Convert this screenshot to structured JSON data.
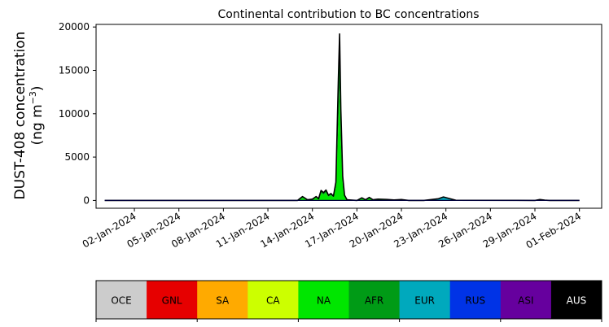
{
  "chart_data": {
    "type": "area",
    "title": "Continental contribution to BC concentrations",
    "ylabel_line1": "DUST-408 concentration",
    "ylabel_line2": "(ng m",
    "ylabel_sup": "−3",
    "ylabel_close": ")",
    "ylim": [
      -900,
      20300
    ],
    "yticks": [
      {
        "value": 0,
        "label": "0"
      },
      {
        "value": 5000,
        "label": "5000"
      },
      {
        "value": 10000,
        "label": "10000"
      },
      {
        "value": 15000,
        "label": "15000"
      },
      {
        "value": 20000,
        "label": "20000"
      }
    ],
    "xlim": [
      "2023-12-30T10:00",
      "2024-02-02T12:00"
    ],
    "xticks": [
      {
        "value": "2024-01-02",
        "label": "02-Jan-2024"
      },
      {
        "value": "2024-01-05",
        "label": "05-Jan-2024"
      },
      {
        "value": "2024-01-08",
        "label": "08-Jan-2024"
      },
      {
        "value": "2024-01-11",
        "label": "11-Jan-2024"
      },
      {
        "value": "2024-01-14",
        "label": "14-Jan-2024"
      },
      {
        "value": "2024-01-17",
        "label": "17-Jan-2024"
      },
      {
        "value": "2024-01-20",
        "label": "20-Jan-2024"
      },
      {
        "value": "2024-01-23",
        "label": "23-Jan-2024"
      },
      {
        "value": "2024-01-26",
        "label": "26-Jan-2024"
      },
      {
        "value": "2024-01-29",
        "label": "29-Jan-2024"
      },
      {
        "value": "2024-02-01",
        "label": "01-Feb-2024"
      }
    ],
    "grid": false,
    "legend": "colorbar-below",
    "regions": [
      {
        "label": "OCE",
        "color": "#cccccc"
      },
      {
        "label": "GNL",
        "color": "#e60000"
      },
      {
        "label": "SA",
        "color": "#ffaa00"
      },
      {
        "label": "CA",
        "color": "#ccff00"
      },
      {
        "label": "NA",
        "color": "#00e600"
      },
      {
        "label": "AFR",
        "color": "#009b16"
      },
      {
        "label": "EUR",
        "color": "#00a9bd"
      },
      {
        "label": "RUS",
        "color": "#0033e6"
      },
      {
        "label": "ASI",
        "color": "#66009e"
      },
      {
        "label": "AUS",
        "color": "#000000"
      }
    ],
    "series_points": [
      {
        "t": "2023-12-31T00:00",
        "NA": 0,
        "AFR": 0,
        "EUR": 0,
        "total": 0
      },
      {
        "t": "2024-01-13T00:00",
        "NA": 0,
        "AFR": 0,
        "EUR": 0,
        "total": 0
      },
      {
        "t": "2024-01-13T08:00",
        "NA": 300,
        "AFR": 100,
        "EUR": 0,
        "total": 450
      },
      {
        "t": "2024-01-13T16:00",
        "NA": 50,
        "AFR": 20,
        "EUR": 0,
        "total": 80
      },
      {
        "t": "2024-01-14T00:00",
        "NA": 100,
        "AFR": 50,
        "EUR": 0,
        "total": 150
      },
      {
        "t": "2024-01-14T06:00",
        "NA": 350,
        "AFR": 100,
        "EUR": 0,
        "total": 450
      },
      {
        "t": "2024-01-14T10:00",
        "NA": 150,
        "AFR": 50,
        "EUR": 0,
        "total": 200
      },
      {
        "t": "2024-01-14T14:00",
        "NA": 850,
        "AFR": 250,
        "EUR": 0,
        "total": 1150
      },
      {
        "t": "2024-01-14T18:00",
        "NA": 650,
        "AFR": 200,
        "EUR": 0,
        "total": 900
      },
      {
        "t": "2024-01-14T22:00",
        "NA": 900,
        "AFR": 250,
        "EUR": 0,
        "total": 1200
      },
      {
        "t": "2024-01-15T02:00",
        "NA": 400,
        "AFR": 150,
        "EUR": 0,
        "total": 600
      },
      {
        "t": "2024-01-15T06:00",
        "NA": 600,
        "AFR": 150,
        "EUR": 0,
        "total": 800
      },
      {
        "t": "2024-01-15T10:00",
        "NA": 350,
        "AFR": 100,
        "EUR": 0,
        "total": 500
      },
      {
        "t": "2024-01-15T14:00",
        "NA": 1500,
        "AFR": 400,
        "EUR": 0,
        "total": 2100
      },
      {
        "t": "2024-01-15T18:00",
        "NA": 9000,
        "AFR": 3500,
        "EUR": 0,
        "total": 14000
      },
      {
        "t": "2024-01-15T20:00",
        "NA": 13000,
        "AFR": 5000,
        "EUR": 0,
        "total": 19200
      },
      {
        "t": "2024-01-15T22:00",
        "NA": 7000,
        "AFR": 2500,
        "EUR": 0,
        "total": 10500
      },
      {
        "t": "2024-01-16T01:00",
        "NA": 2000,
        "AFR": 600,
        "EUR": 0,
        "total": 2800
      },
      {
        "t": "2024-01-16T04:00",
        "NA": 400,
        "AFR": 150,
        "EUR": 0,
        "total": 600
      },
      {
        "t": "2024-01-16T08:00",
        "NA": 50,
        "AFR": 20,
        "EUR": 0,
        "total": 80
      },
      {
        "t": "2024-01-17T00:00",
        "NA": 0,
        "AFR": 0,
        "EUR": 0,
        "total": 0
      },
      {
        "t": "2024-01-17T08:00",
        "NA": 200,
        "AFR": 100,
        "EUR": 0,
        "total": 300
      },
      {
        "t": "2024-01-17T14:00",
        "NA": 50,
        "AFR": 20,
        "EUR": 0,
        "total": 80
      },
      {
        "t": "2024-01-17T20:00",
        "NA": 250,
        "AFR": 100,
        "EUR": 0,
        "total": 350
      },
      {
        "t": "2024-01-18T02:00",
        "NA": 50,
        "AFR": 20,
        "EUR": 0,
        "total": 80
      },
      {
        "t": "2024-01-18T10:00",
        "NA": 100,
        "AFR": 50,
        "EUR": 0,
        "total": 150
      },
      {
        "t": "2024-01-19T00:00",
        "NA": 80,
        "AFR": 40,
        "EUR": 0,
        "total": 120
      },
      {
        "t": "2024-01-19T12:00",
        "NA": 40,
        "AFR": 20,
        "EUR": 0,
        "total": 60
      },
      {
        "t": "2024-01-20T00:00",
        "NA": 50,
        "AFR": 30,
        "EUR": 0,
        "total": 100
      },
      {
        "t": "2024-01-20T12:00",
        "NA": 0,
        "AFR": 0,
        "EUR": 0,
        "total": 0
      },
      {
        "t": "2024-01-21T12:00",
        "NA": 0,
        "AFR": 0,
        "EUR": 0,
        "total": 0
      },
      {
        "t": "2024-01-22T12:00",
        "NA": 20,
        "AFR": 10,
        "EUR": 120,
        "total": 200
      },
      {
        "t": "2024-01-22T20:00",
        "NA": 30,
        "AFR": 10,
        "EUR": 300,
        "total": 400
      },
      {
        "t": "2024-01-23T04:00",
        "NA": 20,
        "AFR": 10,
        "EUR": 150,
        "total": 250
      },
      {
        "t": "2024-01-23T16:00",
        "NA": 0,
        "AFR": 0,
        "EUR": 0,
        "total": 20
      },
      {
        "t": "2024-01-29T00:00",
        "NA": 0,
        "AFR": 0,
        "EUR": 0,
        "total": 0
      },
      {
        "t": "2024-01-29T08:00",
        "NA": 50,
        "AFR": 20,
        "EUR": 0,
        "total": 100
      },
      {
        "t": "2024-01-29T16:00",
        "NA": 20,
        "AFR": 10,
        "EUR": 0,
        "total": 30
      },
      {
        "t": "2024-01-30T00:00",
        "NA": 0,
        "AFR": 0,
        "EUR": 0,
        "total": 0
      },
      {
        "t": "2024-02-01T00:00",
        "NA": 0,
        "AFR": 0,
        "EUR": 0,
        "total": 0
      }
    ]
  }
}
